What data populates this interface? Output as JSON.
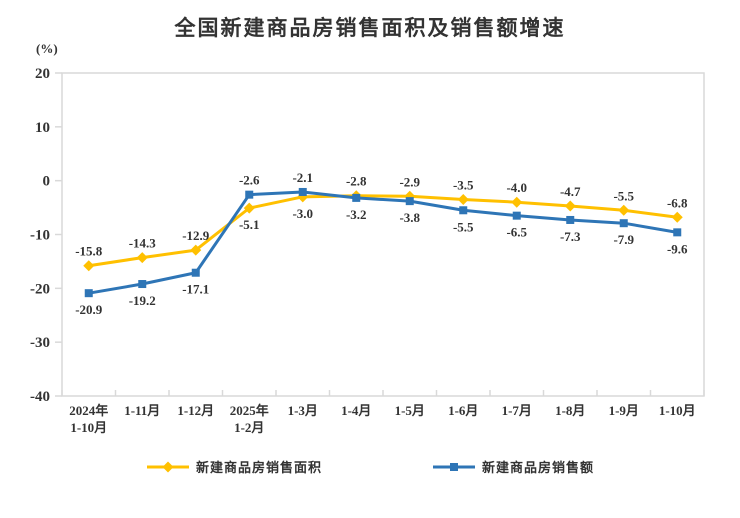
{
  "title": "全国新建商品房销售面积及销售额增速",
  "unit_label": "(%)",
  "chart_data": {
    "type": "line",
    "categories": [
      "2024年\n1-10月",
      "1-11月",
      "1-12月",
      "2025年\n1-2月",
      "1-3月",
      "1-4月",
      "1-5月",
      "1-6月",
      "1-7月",
      "1-8月",
      "1-9月",
      "1-10月"
    ],
    "series": [
      {
        "name": "新建商品房销售面积",
        "marker": "diamond",
        "color": "#FFC000",
        "values": [
          -15.8,
          -14.3,
          -12.9,
          -5.1,
          -3.0,
          -2.8,
          -2.9,
          -3.5,
          -4.0,
          -4.7,
          -5.5,
          -6.8
        ],
        "labels": [
          "-15.8",
          "-14.3",
          "-12.9",
          "-5.1",
          "-3.0",
          "-2.8",
          "-2.9",
          "-3.5",
          "-4.0",
          "-4.7",
          "-5.5",
          "-6.8"
        ]
      },
      {
        "name": "新建商品房销售额",
        "marker": "square",
        "color": "#2E75B6",
        "values": [
          -20.9,
          -19.2,
          -17.1,
          -2.6,
          -2.1,
          -3.2,
          -3.8,
          -5.5,
          -6.5,
          -7.3,
          -7.9,
          -9.6
        ],
        "labels": [
          "-20.9",
          "-19.2",
          "-17.1",
          "-2.6",
          "-2.1",
          "-3.2",
          "-3.8",
          "-5.5",
          "-6.5",
          "-7.3",
          "-7.9",
          "-9.6"
        ]
      }
    ],
    "ylim": [
      -40,
      20
    ],
    "ytick_step": 10,
    "grid": false,
    "legend_position": "bottom",
    "text_color": "#333333",
    "axis_color": "#D9D9D9"
  }
}
